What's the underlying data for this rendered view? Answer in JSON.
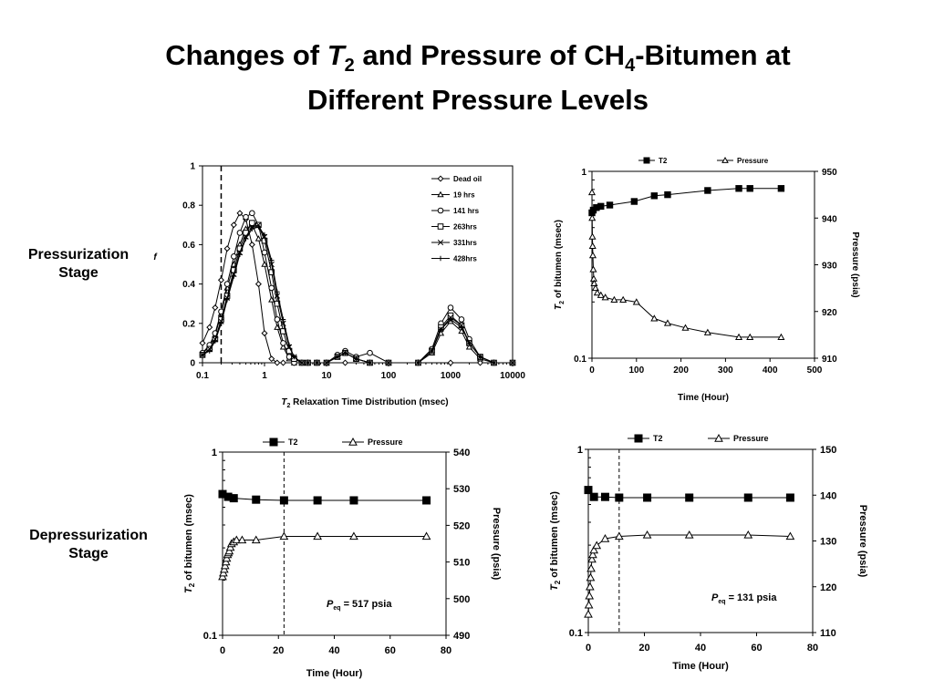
{
  "title": {
    "line1_a": "Changes of ",
    "line1_T": "T",
    "line1_sub2": "2",
    "line1_b": " and Pressure of CH",
    "line1_sub4": "4",
    "line1_c": "-Bitumen at",
    "line2": "Different Pressure Levels"
  },
  "stages": {
    "pressurization": [
      "Pressurization",
      "Stage"
    ],
    "depressurization": [
      "Depressurization",
      "Stage"
    ]
  },
  "chart_data": [
    {
      "id": "t2-distribution",
      "type": "line",
      "title": "",
      "xlabel_T": "T",
      "xlabel_sub": "2",
      "xlabel_rest": " Relaxation Time Distribution (msec)",
      "ylabel": "f",
      "xscale": "log",
      "xlim": [
        0.1,
        10000
      ],
      "ylim": [
        0,
        1
      ],
      "xticks": [
        "0.1",
        "1",
        "10",
        "100",
        "1000",
        "10000"
      ],
      "yticks": [
        "0",
        "0.2",
        "0.4",
        "0.6",
        "0.8",
        "1"
      ],
      "cutoff_x": 0.2,
      "legend_position": "top-right",
      "series": [
        {
          "name": "Dead oil",
          "marker": "diamond",
          "x": [
            0.1,
            0.13,
            0.16,
            0.2,
            0.25,
            0.32,
            0.4,
            0.5,
            0.63,
            0.8,
            1,
            1.3,
            1.6,
            2,
            3,
            5,
            10,
            20,
            50,
            100,
            300,
            1000,
            3000,
            10000
          ],
          "y": [
            0.1,
            0.18,
            0.28,
            0.42,
            0.58,
            0.7,
            0.76,
            0.73,
            0.6,
            0.4,
            0.15,
            0.02,
            0,
            0,
            0,
            0,
            0,
            0,
            0,
            0,
            0,
            0,
            0,
            0
          ]
        },
        {
          "name": "19 hrs",
          "marker": "triangle",
          "x": [
            0.1,
            0.13,
            0.16,
            0.2,
            0.25,
            0.32,
            0.4,
            0.5,
            0.63,
            0.8,
            1,
            1.3,
            1.6,
            2,
            2.5,
            3,
            4,
            5,
            7,
            10,
            15,
            20,
            30,
            50,
            100,
            300,
            500,
            700,
            1000,
            1500,
            2000,
            3000,
            5000,
            10000
          ],
          "y": [
            0.05,
            0.08,
            0.14,
            0.25,
            0.38,
            0.5,
            0.6,
            0.68,
            0.7,
            0.63,
            0.5,
            0.32,
            0.18,
            0.08,
            0.02,
            0,
            0,
            0,
            0,
            0,
            0.03,
            0.05,
            0.02,
            0,
            0,
            0,
            0.05,
            0.15,
            0.21,
            0.16,
            0.08,
            0.02,
            0,
            0
          ]
        },
        {
          "name": "141 hrs",
          "marker": "circle",
          "x": [
            0.1,
            0.13,
            0.16,
            0.2,
            0.25,
            0.32,
            0.4,
            0.5,
            0.63,
            0.8,
            1,
            1.3,
            1.6,
            2,
            2.5,
            3,
            4,
            5,
            7,
            10,
            15,
            20,
            30,
            50,
            100,
            300,
            500,
            700,
            1000,
            1500,
            2000,
            3000,
            5000,
            10000
          ],
          "y": [
            0.05,
            0.09,
            0.15,
            0.26,
            0.4,
            0.54,
            0.66,
            0.74,
            0.76,
            0.7,
            0.56,
            0.38,
            0.22,
            0.1,
            0.03,
            0,
            0,
            0,
            0,
            0,
            0.04,
            0.06,
            0.03,
            0.05,
            0,
            0,
            0.07,
            0.2,
            0.28,
            0.22,
            0.12,
            0.03,
            0,
            0
          ]
        },
        {
          "name": "263hrs",
          "marker": "square",
          "x": [
            0.1,
            0.13,
            0.16,
            0.2,
            0.25,
            0.32,
            0.4,
            0.5,
            0.63,
            0.8,
            1,
            1.3,
            1.6,
            2,
            2.5,
            3,
            4,
            5,
            7,
            10,
            15,
            20,
            30,
            50,
            100,
            300,
            500,
            700,
            1000,
            1500,
            2000,
            3000,
            5000,
            10000
          ],
          "y": [
            0.04,
            0.07,
            0.12,
            0.22,
            0.34,
            0.47,
            0.58,
            0.66,
            0.71,
            0.7,
            0.62,
            0.46,
            0.3,
            0.16,
            0.06,
            0.02,
            0,
            0,
            0,
            0,
            0.03,
            0.05,
            0.02,
            0,
            0,
            0,
            0.06,
            0.18,
            0.24,
            0.19,
            0.1,
            0.03,
            0,
            0
          ]
        },
        {
          "name": "331hrs",
          "marker": "x",
          "x": [
            0.1,
            0.13,
            0.16,
            0.2,
            0.25,
            0.32,
            0.4,
            0.5,
            0.63,
            0.8,
            1,
            1.3,
            1.6,
            2,
            2.5,
            3,
            4,
            5,
            7,
            10,
            15,
            20,
            30,
            50,
            100,
            300,
            500,
            700,
            1000,
            1500,
            2000,
            3000,
            5000,
            10000
          ],
          "y": [
            0.04,
            0.07,
            0.12,
            0.21,
            0.33,
            0.45,
            0.56,
            0.64,
            0.69,
            0.7,
            0.64,
            0.5,
            0.34,
            0.2,
            0.08,
            0.03,
            0,
            0,
            0,
            0,
            0.03,
            0.05,
            0.02,
            0,
            0,
            0,
            0.06,
            0.17,
            0.23,
            0.19,
            0.1,
            0.03,
            0,
            0
          ]
        },
        {
          "name": "428hrs",
          "marker": "plus",
          "x": [
            0.1,
            0.13,
            0.16,
            0.2,
            0.25,
            0.32,
            0.4,
            0.5,
            0.63,
            0.8,
            1,
            1.3,
            1.6,
            2,
            2.5,
            3,
            4,
            5,
            7,
            10,
            15,
            20,
            30,
            50,
            100,
            300,
            500,
            700,
            1000,
            1500,
            2000,
            3000,
            5000,
            10000
          ],
          "y": [
            0.04,
            0.06,
            0.11,
            0.2,
            0.32,
            0.44,
            0.55,
            0.63,
            0.68,
            0.69,
            0.65,
            0.52,
            0.36,
            0.22,
            0.09,
            0.03,
            0,
            0,
            0,
            0,
            0.03,
            0.05,
            0.02,
            0,
            0,
            0,
            0.06,
            0.17,
            0.22,
            0.18,
            0.1,
            0.03,
            0,
            0
          ]
        }
      ]
    },
    {
      "id": "pressurization-t2-pressure",
      "type": "line",
      "title": "",
      "xlabel": "Time (Hour)",
      "ylabel_T": "T",
      "ylabel_sub": "2",
      "ylabel_rest": " of bitumen  (msec)",
      "y2label": "Pressure  (psia)",
      "xlim": [
        0,
        500
      ],
      "xticks": [
        "0",
        "100",
        "200",
        "300",
        "400",
        "500"
      ],
      "ylim": [
        0.1,
        1
      ],
      "yscale": "log",
      "yticks": [
        "0.1",
        "1"
      ],
      "y2lim": [
        910,
        950
      ],
      "y2ticks": [
        "910",
        "920",
        "930",
        "940",
        "950"
      ],
      "legend_position": "top",
      "series": [
        {
          "name": "T2",
          "axis": "left",
          "marker": "square-filled",
          "x": [
            0,
            3,
            10,
            20,
            40,
            95,
            140,
            170,
            260,
            330,
            355,
            425
          ],
          "y": [
            0.6,
            0.62,
            0.64,
            0.65,
            0.66,
            0.69,
            0.74,
            0.75,
            0.79,
            0.81,
            0.81,
            0.81
          ]
        },
        {
          "name": "Pressure",
          "axis": "right",
          "marker": "triangle-open",
          "x": [
            0,
            0.5,
            1,
            1.5,
            2,
            3,
            4,
            5,
            8,
            12,
            20,
            30,
            50,
            70,
            100,
            140,
            170,
            210,
            260,
            330,
            355,
            425
          ],
          "y": [
            945.5,
            940,
            936,
            934,
            932,
            929,
            927,
            926,
            925,
            924,
            923.5,
            923,
            922.5,
            922.5,
            922,
            918.5,
            917.5,
            916.5,
            915.5,
            914.5,
            914.5,
            914.5
          ]
        }
      ]
    },
    {
      "id": "depressurization-517",
      "type": "line",
      "title": "",
      "xlabel": "Time (Hour)",
      "ylabel_T": "T",
      "ylabel_sub": "2",
      "ylabel_rest": " of bitumen (msec)",
      "y2label": "Pressure (psia)",
      "xlim": [
        0,
        80
      ],
      "xticks": [
        "0",
        "20",
        "40",
        "60",
        "80"
      ],
      "ylim": [
        0.1,
        1
      ],
      "yscale": "log",
      "yticks": [
        "0.1",
        "1"
      ],
      "y2lim": [
        490,
        540
      ],
      "y2ticks": [
        "490",
        "500",
        "510",
        "520",
        "530",
        "540"
      ],
      "equilibrium_line_x": 22,
      "annotation": {
        "P": "P",
        "sub": "eq",
        "text": " =   517 psia"
      },
      "legend_position": "top",
      "series": [
        {
          "name": "T2",
          "axis": "left",
          "marker": "square-filled",
          "x": [
            0,
            2,
            4,
            12,
            22,
            34,
            47,
            73
          ],
          "y": [
            0.59,
            0.57,
            0.56,
            0.55,
            0.545,
            0.545,
            0.545,
            0.545
          ]
        },
        {
          "name": "Pressure",
          "axis": "right",
          "marker": "triangle-open",
          "x": [
            0,
            0.3,
            0.6,
            0.9,
            1.2,
            1.5,
            1.8,
            2.1,
            2.4,
            2.8,
            3.2,
            4,
            5,
            7,
            12,
            22,
            34,
            47,
            73
          ],
          "y": [
            506,
            507,
            508,
            509,
            510,
            511,
            512,
            512.5,
            513,
            514,
            515,
            515.5,
            516,
            516,
            516,
            517,
            517,
            517,
            517
          ]
        }
      ]
    },
    {
      "id": "depressurization-131",
      "type": "line",
      "title": "",
      "xlabel": "Time (Hour)",
      "ylabel_T": "T",
      "ylabel_sub": "2",
      "ylabel_rest": " of bitumen (msec)",
      "y2label": "Pressure (psia)",
      "xlim": [
        0,
        80
      ],
      "xticks": [
        "0",
        "20",
        "40",
        "60",
        "80"
      ],
      "ylim": [
        0.1,
        1
      ],
      "yscale": "log",
      "yticks": [
        "0.1",
        "1"
      ],
      "y2lim": [
        110,
        150
      ],
      "y2ticks": [
        "110",
        "120",
        "130",
        "140",
        "150"
      ],
      "equilibrium_line_x": 11,
      "annotation": {
        "P": "P",
        "sub": "eq",
        "text": " =   131 psia"
      },
      "legend_position": "top",
      "series": [
        {
          "name": "T2",
          "axis": "left",
          "marker": "square-filled",
          "x": [
            0,
            2,
            6,
            11,
            21,
            36,
            57,
            72
          ],
          "y": [
            0.6,
            0.55,
            0.55,
            0.545,
            0.545,
            0.545,
            0.545,
            0.545
          ]
        },
        {
          "name": "Pressure",
          "axis": "right",
          "marker": "triangle-open",
          "x": [
            0,
            0.2,
            0.4,
            0.6,
            0.8,
            1.0,
            1.3,
            1.6,
            2,
            3,
            6,
            11,
            21,
            36,
            57,
            72
          ],
          "y": [
            114,
            116,
            118,
            120,
            122,
            124,
            126,
            127,
            128,
            129,
            130.5,
            131,
            131.3,
            131.3,
            131.3,
            131
          ]
        }
      ]
    }
  ]
}
